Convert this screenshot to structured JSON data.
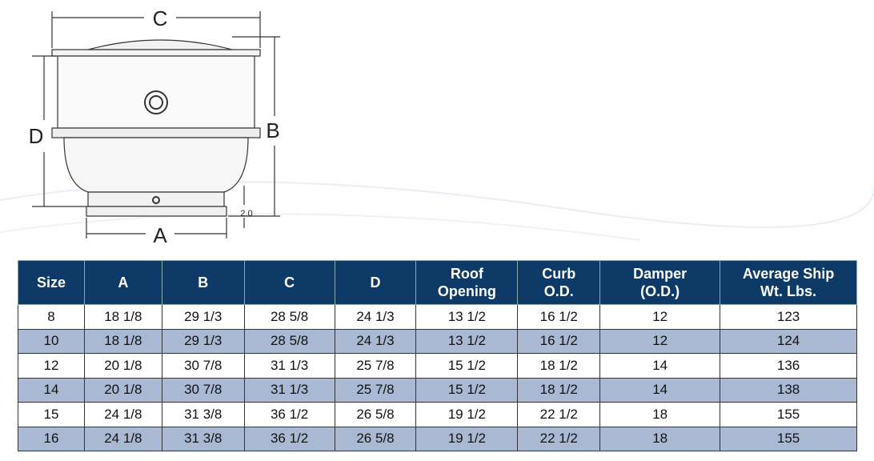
{
  "diagram": {
    "labels": {
      "c": "C",
      "b": "B",
      "d": "D",
      "a": "A",
      "base": "2.0"
    }
  },
  "table": {
    "headers": [
      [
        "Size"
      ],
      [
        "A"
      ],
      [
        "B"
      ],
      [
        "C"
      ],
      [
        "D"
      ],
      [
        "Roof",
        "Opening"
      ],
      [
        "Curb",
        "O.D."
      ],
      [
        "Damper",
        "(O.D.)"
      ],
      [
        "Average Ship",
        "Wt. Lbs."
      ]
    ],
    "rows": [
      [
        "8",
        "18 1/8",
        "29 1/3",
        "28 5/8",
        "24 1/3",
        "13 1/2",
        "16 1/2",
        "12",
        "123"
      ],
      [
        "10",
        "18 1/8",
        "29 1/3",
        "28 5/8",
        "24 1/3",
        "13 1/2",
        "16 1/2",
        "12",
        "124"
      ],
      [
        "12",
        "20 1/8",
        "30 7/8",
        "31 1/3",
        "25 7/8",
        "15 1/2",
        "18 1/2",
        "14",
        "136"
      ],
      [
        "14",
        "20 1/8",
        "30 7/8",
        "31 1/3",
        "25 7/8",
        "15 1/2",
        "18 1/2",
        "14",
        "138"
      ],
      [
        "15",
        "24 1/8",
        "31 3/8",
        "36 1/2",
        "26 5/8",
        "19 1/2",
        "22 1/2",
        "18",
        "155"
      ],
      [
        "16",
        "24 1/8",
        "31 3/8",
        "36 1/2",
        "26 5/8",
        "19 1/2",
        "22 1/2",
        "18",
        "155"
      ]
    ]
  }
}
